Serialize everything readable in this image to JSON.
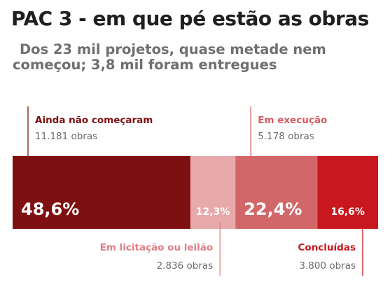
{
  "title": "PAC 3 - em que pé estão as obras",
  "subtitle": {
    "line1": "Dos 23 mil projetos, quase metade nem",
    "line2": "começou; 3,8 mil foram entregues"
  },
  "chart_data": {
    "type": "bar",
    "orientation": "stacked-horizontal-100%",
    "categories": [
      "Ainda não começaram",
      "Em licitação ou leilão",
      "Em execução",
      "Concluídas"
    ],
    "values": [
      48.6,
      12.3,
      22.4,
      16.6
    ],
    "value_labels": [
      "48,6%",
      "12,3%",
      "22,4%",
      "16,6%"
    ],
    "counts": [
      "11.181 obras",
      "2.836 obras",
      "5.178 obras",
      "3.800 obras"
    ],
    "annotation_positions": [
      "top",
      "bottom",
      "top",
      "bottom"
    ],
    "colors": [
      "#7f1012",
      "#e8a9ab",
      "#d16769",
      "#c8171e"
    ],
    "label_colors": [
      "#7f1012",
      "#e07c84",
      "#d65a62",
      "#c8171e"
    ]
  }
}
